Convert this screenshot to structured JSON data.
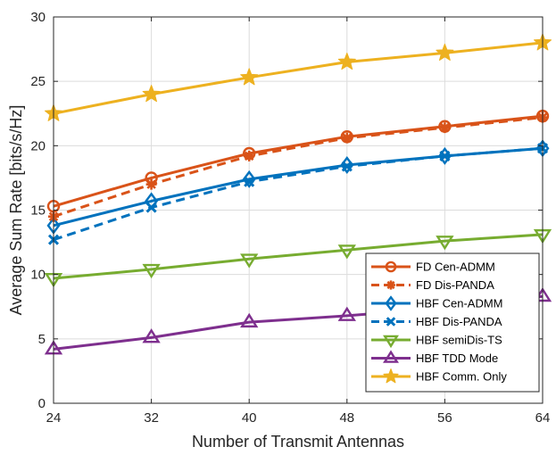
{
  "chart_data": {
    "type": "line",
    "title": "",
    "xlabel": "Number of Transmit Antennas",
    "ylabel": "Average Sum Rate [bits/s/Hz]",
    "x": [
      24,
      32,
      40,
      48,
      56,
      64
    ],
    "xticks": [
      "24",
      "32",
      "40",
      "48",
      "56",
      "64"
    ],
    "yticks": [
      "0",
      "5",
      "10",
      "15",
      "20",
      "25",
      "30"
    ],
    "xlim": [
      24,
      64
    ],
    "ylim": [
      0,
      30
    ],
    "grid": true,
    "legend_position": "bottom-right",
    "series": [
      {
        "name": "FD Cen-ADMM",
        "values": [
          15.3,
          17.5,
          19.4,
          20.7,
          21.5,
          22.3
        ],
        "color": "#D95319",
        "marker": "circle",
        "dash": "solid"
      },
      {
        "name": "FD Dis-PANDA",
        "values": [
          14.5,
          17.0,
          19.2,
          20.6,
          21.4,
          22.2
        ],
        "color": "#D95319",
        "marker": "asterisk",
        "dash": "dashed"
      },
      {
        "name": "HBF Cen-ADMM",
        "values": [
          13.8,
          15.7,
          17.4,
          18.5,
          19.2,
          19.8
        ],
        "color": "#0072BD",
        "marker": "diamond",
        "dash": "solid"
      },
      {
        "name": "HBF Dis-PANDA",
        "values": [
          12.7,
          15.2,
          17.2,
          18.4,
          19.2,
          19.8
        ],
        "color": "#0072BD",
        "marker": "x",
        "dash": "dashed"
      },
      {
        "name": "HBF semiDis-TS",
        "values": [
          9.7,
          10.4,
          11.2,
          11.9,
          12.6,
          13.1
        ],
        "color": "#77AC30",
        "marker": "triangle-down",
        "dash": "solid"
      },
      {
        "name": "HBF TDD Mode",
        "values": [
          4.2,
          5.1,
          6.3,
          6.8,
          7.4,
          8.3
        ],
        "color": "#7E2F8E",
        "marker": "triangle-up",
        "dash": "solid"
      },
      {
        "name": "HBF Comm. Only",
        "values": [
          22.5,
          24.0,
          25.3,
          26.5,
          27.2,
          28.0
        ],
        "color": "#EDB120",
        "marker": "star",
        "dash": "solid"
      }
    ]
  }
}
